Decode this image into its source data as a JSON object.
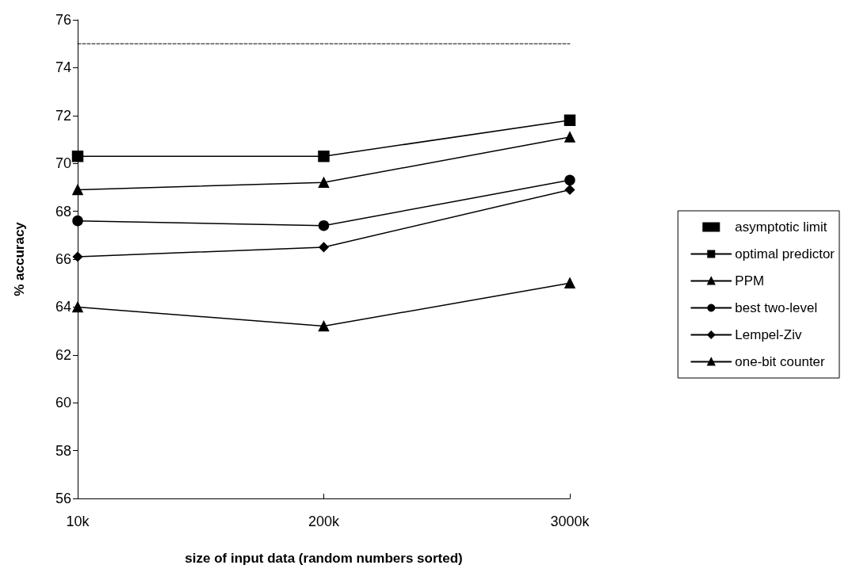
{
  "chart_data": {
    "type": "line",
    "xlabel": "size of input data (random numbers sorted)",
    "ylabel": "% accuracy",
    "categories": [
      "10k",
      "200k",
      "3000k"
    ],
    "ylim": [
      56,
      76
    ],
    "yticks": [
      56,
      58,
      60,
      62,
      64,
      66,
      68,
      70,
      72,
      74,
      76
    ],
    "grid": false,
    "legend": "right",
    "series": [
      {
        "name": "asymptotic limit",
        "color": "#000000",
        "values": [
          75,
          75,
          75
        ],
        "marker": "none",
        "line_style": "dashed"
      },
      {
        "name": "optimal predictor",
        "color": "#000000",
        "values": [
          70.3,
          70.3,
          71.8
        ],
        "marker": "square",
        "line_style": "solid"
      },
      {
        "name": "PPM",
        "color": "#000000",
        "values": [
          68.9,
          69.2,
          71.1
        ],
        "marker": "triangle",
        "line_style": "solid"
      },
      {
        "name": "best two-level",
        "color": "#000000",
        "values": [
          67.6,
          67.4,
          69.3
        ],
        "marker": "circle",
        "line_style": "solid"
      },
      {
        "name": "Lempel-Ziv",
        "color": "#000000",
        "values": [
          66.1,
          66.5,
          68.9
        ],
        "marker": "diamond",
        "line_style": "solid"
      },
      {
        "name": "one-bit counter",
        "color": "#000000",
        "values": [
          64.0,
          63.2,
          65.0
        ],
        "marker": "triangle",
        "line_style": "solid"
      }
    ]
  }
}
